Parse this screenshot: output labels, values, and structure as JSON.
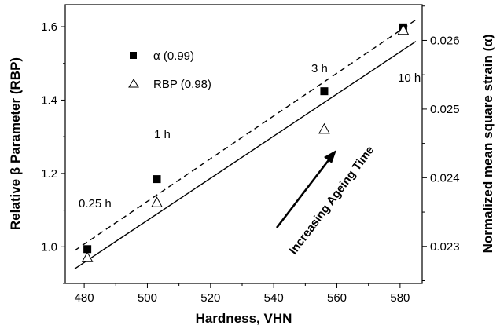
{
  "chart_data": {
    "type": "scatter",
    "xlabel": "Hardness, VHN",
    "ylabel": "Relative β Parameter (RBP)",
    "y2label": "Normalized mean square strain (α)",
    "xlim": [
      474,
      587
    ],
    "ylim": [
      0.9,
      1.66
    ],
    "y2lim": [
      0.02246,
      0.02652
    ],
    "x_ticks": [
      "480",
      "500",
      "520",
      "540",
      "560",
      "580"
    ],
    "y_ticks": [
      "1.0",
      "1.2",
      "1.4",
      "1.6"
    ],
    "y2_ticks": [
      "0.023",
      "0.024",
      "0.025",
      "0.026"
    ],
    "grid": false,
    "legend_position": "top-left",
    "series": [
      {
        "name": "α (0.99)",
        "axis": "right",
        "marker": "filled-square",
        "x": [
          481,
          503,
          556,
          581
        ],
        "y": [
          0.02296,
          0.02398,
          0.02526,
          0.02619
        ],
        "fit": {
          "style": "dashed",
          "x": [
            477,
            585
          ],
          "y": [
            0.02294,
            0.0263
          ]
        }
      },
      {
        "name": "RBP (0.98)",
        "axis": "left",
        "marker": "open-triangle",
        "x": [
          481,
          503,
          556,
          581
        ],
        "y": [
          0.97,
          1.12,
          1.32,
          1.59
        ],
        "fit": {
          "style": "solid",
          "x": [
            477,
            585
          ],
          "y": [
            0.94,
            1.56
          ]
        }
      }
    ],
    "annotations": [
      {
        "text": "0.25 h",
        "style": "normal"
      },
      {
        "text": "1 h",
        "style": "normal"
      },
      {
        "text": "3 h",
        "style": "normal"
      },
      {
        "text": "10 h",
        "style": "normal"
      },
      {
        "text": "Increasing Ageing Time",
        "style": "bold"
      }
    ]
  }
}
